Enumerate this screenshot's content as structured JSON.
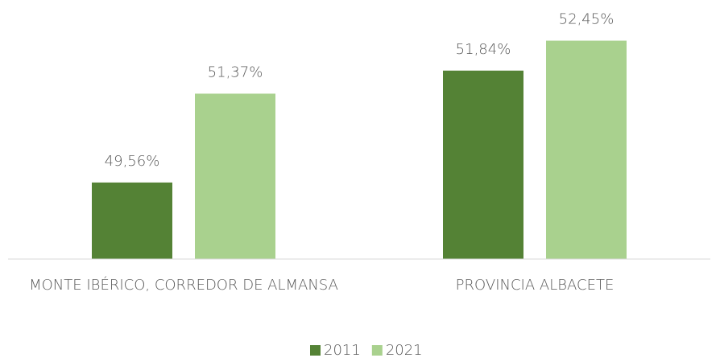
{
  "chart_data": {
    "type": "bar",
    "categories": [
      "MONTE IBÉRICO, CORREDOR DE ALMANSA",
      "PROVINCIA ALBACETE"
    ],
    "series": [
      {
        "name": "2011",
        "color": "#548235",
        "values": [
          49.56,
          51.84
        ],
        "value_labels": [
          "49,56%",
          "51,84%"
        ]
      },
      {
        "name": "2021",
        "color": "#a9d18e",
        "values": [
          51.37,
          52.45
        ],
        "value_labels": [
          "51,37%",
          "52,45%"
        ]
      }
    ],
    "ylim": [
      48,
      52.5
    ],
    "grid": false,
    "legend": "bottom"
  }
}
